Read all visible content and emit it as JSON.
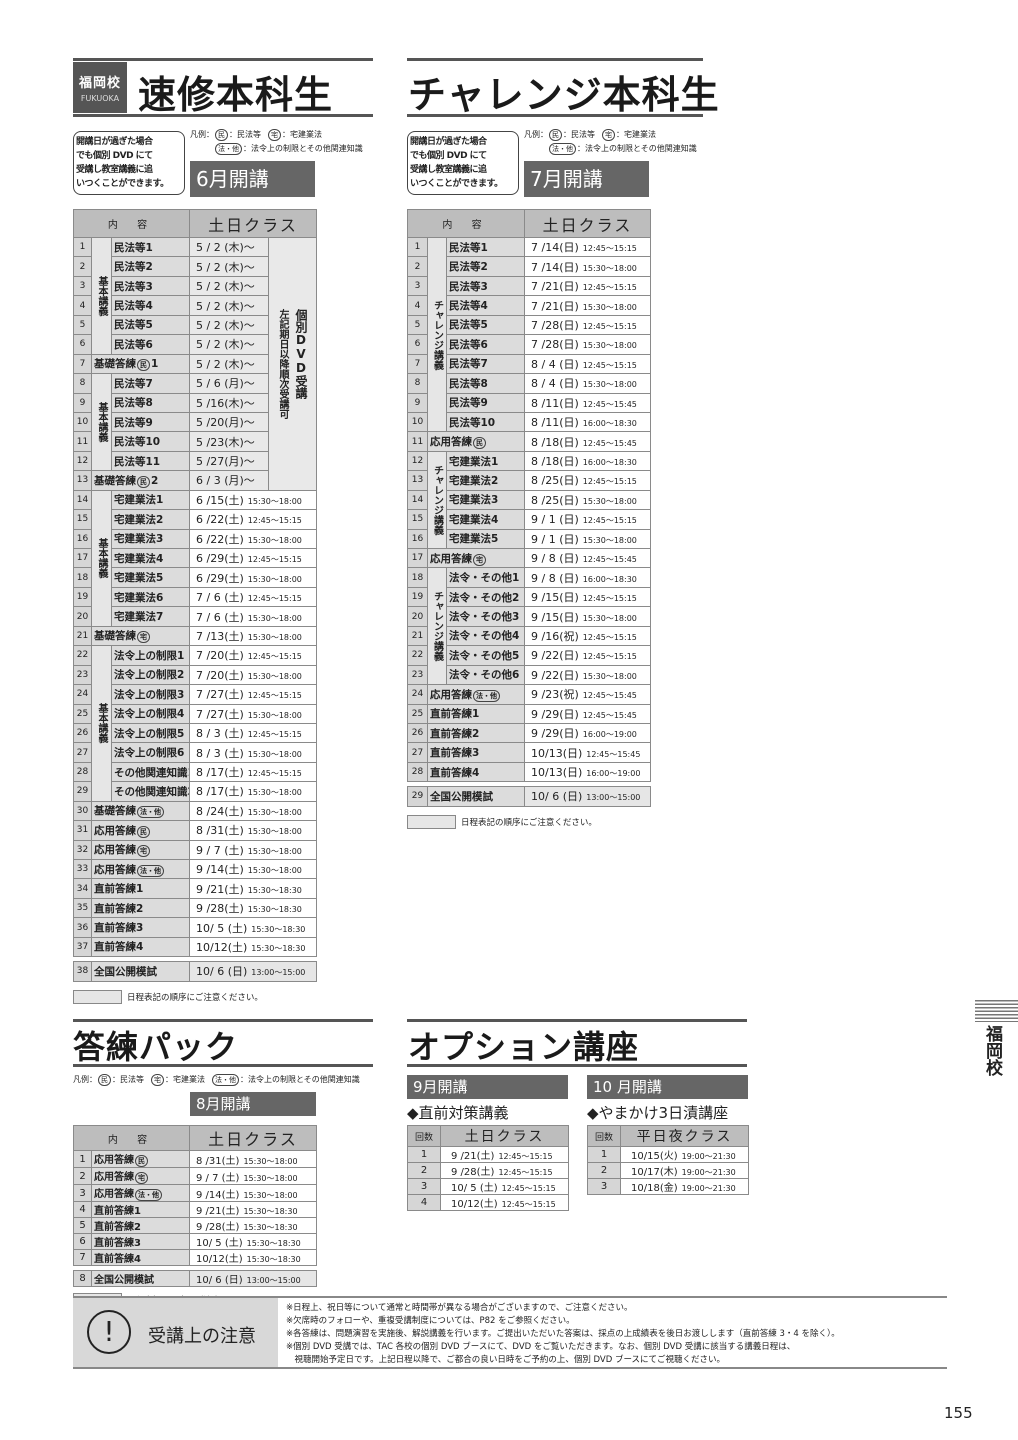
{
  "badge": {
    "jp": "福岡校",
    "en": "FUKUOKA"
  },
  "legend_prefix": "凡例：",
  "legend": [
    {
      "mark": "民",
      "text": "：民法等"
    },
    {
      "mark": "宅",
      "text": "：宅建業法"
    },
    {
      "mark": "法・他",
      "text": "：法令上の制限とその他関連知識"
    }
  ],
  "order_note": "日程表記の順序にご注意ください。",
  "headers": {
    "content": "内 容",
    "class_weekend": "土日クラス",
    "count": "回数",
    "class_weeknight": "平日夜クラス"
  },
  "sokushu": {
    "title": "速修本科生",
    "notice": [
      "開講日が過ぎた場合",
      "でも個別 DVD にて",
      "受講し教室講義に追",
      "いつくことができます。"
    ],
    "month": "6月開講",
    "dvd_note": {
      "main": "個別DVD受講",
      "sub": "左記期日以降順次受講可"
    },
    "rows": [
      {
        "no": "1",
        "group": "基本講義",
        "label": "民法等1",
        "mark": "",
        "date": "5 / 2 (木)～",
        "time": ""
      },
      {
        "no": "2",
        "group": "基本講義",
        "label": "民法等2",
        "mark": "",
        "date": "5 / 2 (木)～",
        "time": ""
      },
      {
        "no": "3",
        "group": "基本講義",
        "label": "民法等3",
        "mark": "",
        "date": "5 / 2 (木)～",
        "time": ""
      },
      {
        "no": "4",
        "group": "基本講義",
        "label": "民法等4",
        "mark": "",
        "date": "5 / 2 (木)～",
        "time": ""
      },
      {
        "no": "5",
        "group": "基本講義",
        "label": "民法等5",
        "mark": "",
        "date": "5 / 2 (木)～",
        "time": ""
      },
      {
        "no": "6",
        "group": "基本講義",
        "label": "民法等6",
        "mark": "",
        "date": "5 / 2 (木)～",
        "time": ""
      },
      {
        "no": "7",
        "group": "",
        "label": "基礎答練",
        "mark": "民",
        "suffix": "1",
        "date": "5 / 2 (木)～",
        "time": ""
      },
      {
        "no": "8",
        "group": "基本講義",
        "label": "民法等7",
        "mark": "",
        "date": "5 / 6 (月)～",
        "time": ""
      },
      {
        "no": "9",
        "group": "基本講義",
        "label": "民法等8",
        "mark": "",
        "date": "5 /16(木)～",
        "time": ""
      },
      {
        "no": "10",
        "group": "基本講義",
        "label": "民法等9",
        "mark": "",
        "date": "5 /20(月)～",
        "time": ""
      },
      {
        "no": "11",
        "group": "基本講義",
        "label": "民法等10",
        "mark": "",
        "date": "5 /23(木)～",
        "time": ""
      },
      {
        "no": "12",
        "group": "基本講義",
        "label": "民法等11",
        "mark": "",
        "date": "5 /27(月)～",
        "time": ""
      },
      {
        "no": "13",
        "group": "",
        "label": "基礎答練",
        "mark": "民",
        "suffix": "2",
        "date": "6 / 3 (月)～",
        "time": ""
      },
      {
        "no": "14",
        "group": "基本講義",
        "label": "宅建業法1",
        "mark": "",
        "date": "6 /15(土)",
        "time": "15:30～18:00"
      },
      {
        "no": "15",
        "group": "基本講義",
        "label": "宅建業法2",
        "mark": "",
        "date": "6 /22(土)",
        "time": "12:45～15:15"
      },
      {
        "no": "16",
        "group": "基本講義",
        "label": "宅建業法3",
        "mark": "",
        "date": "6 /22(土)",
        "time": "15:30～18:00"
      },
      {
        "no": "17",
        "group": "基本講義",
        "label": "宅建業法4",
        "mark": "",
        "date": "6 /29(土)",
        "time": "12:45～15:15"
      },
      {
        "no": "18",
        "group": "基本講義",
        "label": "宅建業法5",
        "mark": "",
        "date": "6 /29(土)",
        "time": "15:30～18:00"
      },
      {
        "no": "19",
        "group": "基本講義",
        "label": "宅建業法6",
        "mark": "",
        "date": "7 / 6 (土)",
        "time": "12:45～15:15"
      },
      {
        "no": "20",
        "group": "基本講義",
        "label": "宅建業法7",
        "mark": "",
        "date": "7 / 6 (土)",
        "time": "15:30～18:00"
      },
      {
        "no": "21",
        "group": "",
        "label": "基礎答練",
        "mark": "宅",
        "date": "7 /13(土)",
        "time": "15:30～18:00"
      },
      {
        "no": "22",
        "group": "基本講義",
        "label": "法令上の制限1",
        "mark": "",
        "date": "7 /20(土)",
        "time": "12:45～15:15"
      },
      {
        "no": "23",
        "group": "基本講義",
        "label": "法令上の制限2",
        "mark": "",
        "date": "7 /20(土)",
        "time": "15:30～18:00"
      },
      {
        "no": "24",
        "group": "基本講義",
        "label": "法令上の制限3",
        "mark": "",
        "date": "7 /27(土)",
        "time": "12:45～15:15"
      },
      {
        "no": "25",
        "group": "基本講義",
        "label": "法令上の制限4",
        "mark": "",
        "date": "7 /27(土)",
        "time": "15:30～18:00"
      },
      {
        "no": "26",
        "group": "基本講義",
        "label": "法令上の制限5",
        "mark": "",
        "date": "8 / 3 (土)",
        "time": "12:45～15:15"
      },
      {
        "no": "27",
        "group": "基本講義",
        "label": "法令上の制限6",
        "mark": "",
        "date": "8 / 3 (土)",
        "time": "15:30～18:00"
      },
      {
        "no": "28",
        "group": "基本講義",
        "label": "その他関連知識1",
        "mark": "",
        "date": "8 /17(土)",
        "time": "12:45～15:15"
      },
      {
        "no": "29",
        "group": "基本講義",
        "label": "その他関連知識2",
        "mark": "",
        "date": "8 /17(土)",
        "time": "15:30～18:00"
      },
      {
        "no": "30",
        "group": "",
        "label": "基礎答練",
        "mark": "法・他",
        "date": "8 /24(土)",
        "time": "15:30～18:00"
      },
      {
        "no": "31",
        "group": "",
        "label": "応用答練",
        "mark": "民",
        "date": "8 /31(土)",
        "time": "15:30～18:00"
      },
      {
        "no": "32",
        "group": "",
        "label": "応用答練",
        "mark": "宅",
        "date": "9 / 7 (土)",
        "time": "15:30～18:00"
      },
      {
        "no": "33",
        "group": "",
        "label": "応用答練",
        "mark": "法・他",
        "date": "9 /14(土)",
        "time": "15:30～18:00"
      },
      {
        "no": "34",
        "group": "",
        "label": "直前答練1",
        "mark": "",
        "date": "9 /21(土)",
        "time": "15:30～18:30"
      },
      {
        "no": "35",
        "group": "",
        "label": "直前答練2",
        "mark": "",
        "date": "9 /28(土)",
        "time": "15:30～18:30"
      },
      {
        "no": "36",
        "group": "",
        "label": "直前答練3",
        "mark": "",
        "date": "10/ 5 (土)",
        "time": "15:30～18:30"
      },
      {
        "no": "37",
        "group": "",
        "label": "直前答練4",
        "mark": "",
        "date": "10/12(土)",
        "time": "15:30～18:30"
      }
    ],
    "mock": {
      "no": "38",
      "label": "全国公開模試",
      "date": "10/ 6 (日)",
      "time": "13:00～15:00"
    }
  },
  "challenge": {
    "title": "チャレンジ本科生",
    "notice": [
      "開講日が過ぎた場合",
      "でも個別 DVD にて",
      "受講し教室講義に追",
      "いつくことができます。"
    ],
    "month": "7月開講",
    "rows": [
      {
        "no": "1",
        "group": "チャレンジ講義",
        "label": "民法等1",
        "mark": "",
        "date": "7 /14(日)",
        "time": "12:45～15:15"
      },
      {
        "no": "2",
        "group": "チャレンジ講義",
        "label": "民法等2",
        "mark": "",
        "date": "7 /14(日)",
        "time": "15:30～18:00"
      },
      {
        "no": "3",
        "group": "チャレンジ講義",
        "label": "民法等3",
        "mark": "",
        "date": "7 /21(日)",
        "time": "12:45～15:15"
      },
      {
        "no": "4",
        "group": "チャレンジ講義",
        "label": "民法等4",
        "mark": "",
        "date": "7 /21(日)",
        "time": "15:30～18:00"
      },
      {
        "no": "5",
        "group": "チャレンジ講義",
        "label": "民法等5",
        "mark": "",
        "date": "7 /28(日)",
        "time": "12:45～15:15"
      },
      {
        "no": "6",
        "group": "チャレンジ講義",
        "label": "民法等6",
        "mark": "",
        "date": "7 /28(日)",
        "time": "15:30～18:00"
      },
      {
        "no": "7",
        "group": "チャレンジ講義",
        "label": "民法等7",
        "mark": "",
        "date": "8 / 4 (日)",
        "time": "12:45～15:15"
      },
      {
        "no": "8",
        "group": "チャレンジ講義",
        "label": "民法等8",
        "mark": "",
        "date": "8 / 4 (日)",
        "time": "15:30～18:00"
      },
      {
        "no": "9",
        "group": "チャレンジ講義",
        "label": "民法等9",
        "mark": "",
        "date": "8 /11(日)",
        "time": "12:45～15:45"
      },
      {
        "no": "10",
        "group": "チャレンジ講義",
        "label": "民法等10",
        "mark": "",
        "date": "8 /11(日)",
        "time": "16:00～18:30"
      },
      {
        "no": "11",
        "group": "",
        "label": "応用答練",
        "mark": "民",
        "date": "8 /18(日)",
        "time": "12:45～15:45"
      },
      {
        "no": "12",
        "group": "チャレンジ講義",
        "label": "宅建業法1",
        "mark": "",
        "date": "8 /18(日)",
        "time": "16:00～18:30"
      },
      {
        "no": "13",
        "group": "チャレンジ講義",
        "label": "宅建業法2",
        "mark": "",
        "date": "8 /25(日)",
        "time": "12:45～15:15"
      },
      {
        "no": "14",
        "group": "チャレンジ講義",
        "label": "宅建業法3",
        "mark": "",
        "date": "8 /25(日)",
        "time": "15:30～18:00"
      },
      {
        "no": "15",
        "group": "チャレンジ講義",
        "label": "宅建業法4",
        "mark": "",
        "date": "9 / 1 (日)",
        "time": "12:45～15:15"
      },
      {
        "no": "16",
        "group": "チャレンジ講義",
        "label": "宅建業法5",
        "mark": "",
        "date": "9 / 1 (日)",
        "time": "15:30～18:00"
      },
      {
        "no": "17",
        "group": "",
        "label": "応用答練",
        "mark": "宅",
        "date": "9 / 8 (日)",
        "time": "12:45～15:45"
      },
      {
        "no": "18",
        "group": "チャレンジ講義",
        "label": "法令・その他1",
        "mark": "",
        "date": "9 / 8 (日)",
        "time": "16:00～18:30"
      },
      {
        "no": "19",
        "group": "チャレンジ講義",
        "label": "法令・その他2",
        "mark": "",
        "date": "9 /15(日)",
        "time": "12:45～15:15"
      },
      {
        "no": "20",
        "group": "チャレンジ講義",
        "label": "法令・その他3",
        "mark": "",
        "date": "9 /15(日)",
        "time": "15:30～18:00"
      },
      {
        "no": "21",
        "group": "チャレンジ講義",
        "label": "法令・その他4",
        "mark": "",
        "date": "9 /16(祝)",
        "time": "12:45～15:15"
      },
      {
        "no": "22",
        "group": "チャレンジ講義",
        "label": "法令・その他5",
        "mark": "",
        "date": "9 /22(日)",
        "time": "12:45～15:15"
      },
      {
        "no": "23",
        "group": "チャレンジ講義",
        "label": "法令・その他6",
        "mark": "",
        "date": "9 /22(日)",
        "time": "15:30～18:00"
      },
      {
        "no": "24",
        "group": "",
        "label": "応用答練",
        "mark": "法・他",
        "date": "9 /23(祝)",
        "time": "12:45～15:45"
      },
      {
        "no": "25",
        "group": "",
        "label": "直前答練1",
        "mark": "",
        "date": "9 /29(日)",
        "time": "12:45～15:45"
      },
      {
        "no": "26",
        "group": "",
        "label": "直前答練2",
        "mark": "",
        "date": "9 /29(日)",
        "time": "16:00～19:00"
      },
      {
        "no": "27",
        "group": "",
        "label": "直前答練3",
        "mark": "",
        "date": "10/13(日)",
        "time": "12:45～15:45"
      },
      {
        "no": "28",
        "group": "",
        "label": "直前答練4",
        "mark": "",
        "date": "10/13(日)",
        "time": "16:00～19:00"
      }
    ],
    "mock": {
      "no": "29",
      "label": "全国公開模試",
      "date": "10/ 6 (日)",
      "time": "13:00～15:00"
    }
  },
  "pack": {
    "title": "答練パック",
    "month": "8月開講",
    "rows": [
      {
        "no": "1",
        "group": "",
        "label": "応用答練",
        "mark": "民",
        "date": "8 /31(土)",
        "time": "15:30～18:00"
      },
      {
        "no": "2",
        "group": "",
        "label": "応用答練",
        "mark": "宅",
        "date": "9 / 7 (土)",
        "time": "15:30～18:00"
      },
      {
        "no": "3",
        "group": "",
        "label": "応用答練",
        "mark": "法・他",
        "date": "9 /14(土)",
        "time": "15:30～18:00"
      },
      {
        "no": "4",
        "group": "",
        "label": "直前答練1",
        "mark": "",
        "date": "9 /21(土)",
        "time": "15:30～18:30"
      },
      {
        "no": "5",
        "group": "",
        "label": "直前答練2",
        "mark": "",
        "date": "9 /28(土)",
        "time": "15:30～18:30"
      },
      {
        "no": "6",
        "group": "",
        "label": "直前答練3",
        "mark": "",
        "date": "10/ 5 (土)",
        "time": "15:30～18:30"
      },
      {
        "no": "7",
        "group": "",
        "label": "直前答練4",
        "mark": "",
        "date": "10/12(土)",
        "time": "15:30～18:30"
      }
    ],
    "mock": {
      "no": "8",
      "label": "全国公開模試",
      "date": "10/ 6 (日)",
      "time": "13:00～15:00"
    }
  },
  "option": {
    "title": "オプション講座",
    "sep": {
      "month": "9月開講",
      "course": "◆直前対策講義",
      "rows": [
        {
          "no": "1",
          "date": "9 /21(土)",
          "time": "12:45～15:15"
        },
        {
          "no": "2",
          "date": "9 /28(土)",
          "time": "12:45～15:15"
        },
        {
          "no": "3",
          "date": "10/ 5 (土)",
          "time": "12:45～15:15"
        },
        {
          "no": "4",
          "date": "10/12(土)",
          "time": "12:45～15:15"
        }
      ]
    },
    "oct": {
      "month": "10 月開講",
      "course": "◆やまかけ3日漬講座",
      "rows": [
        {
          "no": "1",
          "date": "10/15(火)",
          "time": "19:00～21:30"
        },
        {
          "no": "2",
          "date": "10/17(木)",
          "time": "19:00～21:30"
        },
        {
          "no": "3",
          "date": "10/18(金)",
          "time": "19:00～21:30"
        }
      ]
    }
  },
  "side_tab": "福岡校",
  "caution": {
    "title": "受講上の注意",
    "lines": [
      "※日程上、祝日等について通常と時間帯が異なる場合がございますので、ご注意ください。",
      "※欠席時のフォローや、重複受講制度については、P82 をご参照ください。",
      "※各答練は、問題演習を実施後、解説講義を行います。ご提出いただいた答案は、採点の上成績表を後日お渡しします（直前答練 3・4 を除く）。",
      "※個別 DVD 受講では、TAC 各校の個別 DVD ブースにて、DVD をご覧いただきます。なお、個別 DVD 受講に該当する講義日程は、",
      "　視聴開始予定日です。上記日程以降で、ご都合の良い日時をご予約の上、個別 DVD ブースにてご視聴ください。"
    ]
  },
  "page_number": "155"
}
